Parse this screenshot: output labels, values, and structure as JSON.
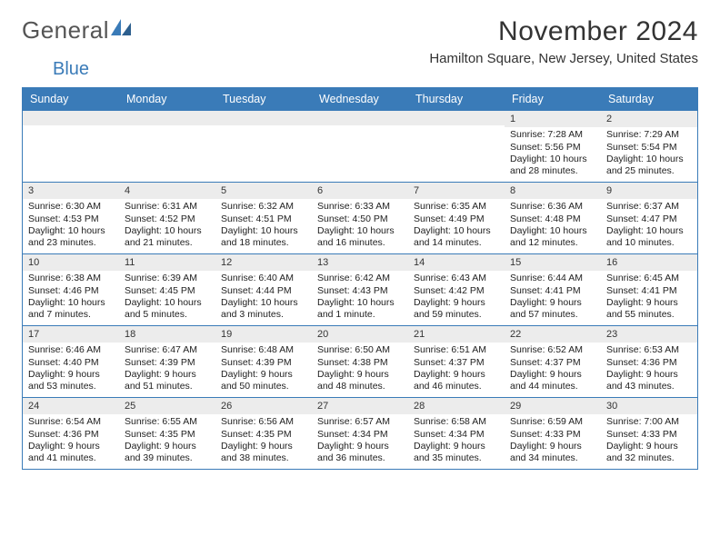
{
  "logo": {
    "word1": "General",
    "word2": "Blue"
  },
  "title": "November 2024",
  "location": "Hamilton Square, New Jersey, United States",
  "colors": {
    "header_bg": "#3a7bb8",
    "header_fg": "#ffffff",
    "daynum_bg": "#ececec",
    "border": "#3a7bb8",
    "text": "#222222",
    "logo_gray": "#555555",
    "logo_blue": "#3a7bb8",
    "page_bg": "#ffffff"
  },
  "day_names": [
    "Sunday",
    "Monday",
    "Tuesday",
    "Wednesday",
    "Thursday",
    "Friday",
    "Saturday"
  ],
  "weeks": [
    [
      {
        "n": "",
        "sr": "",
        "ss": "",
        "dl": ""
      },
      {
        "n": "",
        "sr": "",
        "ss": "",
        "dl": ""
      },
      {
        "n": "",
        "sr": "",
        "ss": "",
        "dl": ""
      },
      {
        "n": "",
        "sr": "",
        "ss": "",
        "dl": ""
      },
      {
        "n": "",
        "sr": "",
        "ss": "",
        "dl": ""
      },
      {
        "n": "1",
        "sr": "Sunrise: 7:28 AM",
        "ss": "Sunset: 5:56 PM",
        "dl": "Daylight: 10 hours and 28 minutes."
      },
      {
        "n": "2",
        "sr": "Sunrise: 7:29 AM",
        "ss": "Sunset: 5:54 PM",
        "dl": "Daylight: 10 hours and 25 minutes."
      }
    ],
    [
      {
        "n": "3",
        "sr": "Sunrise: 6:30 AM",
        "ss": "Sunset: 4:53 PM",
        "dl": "Daylight: 10 hours and 23 minutes."
      },
      {
        "n": "4",
        "sr": "Sunrise: 6:31 AM",
        "ss": "Sunset: 4:52 PM",
        "dl": "Daylight: 10 hours and 21 minutes."
      },
      {
        "n": "5",
        "sr": "Sunrise: 6:32 AM",
        "ss": "Sunset: 4:51 PM",
        "dl": "Daylight: 10 hours and 18 minutes."
      },
      {
        "n": "6",
        "sr": "Sunrise: 6:33 AM",
        "ss": "Sunset: 4:50 PM",
        "dl": "Daylight: 10 hours and 16 minutes."
      },
      {
        "n": "7",
        "sr": "Sunrise: 6:35 AM",
        "ss": "Sunset: 4:49 PM",
        "dl": "Daylight: 10 hours and 14 minutes."
      },
      {
        "n": "8",
        "sr": "Sunrise: 6:36 AM",
        "ss": "Sunset: 4:48 PM",
        "dl": "Daylight: 10 hours and 12 minutes."
      },
      {
        "n": "9",
        "sr": "Sunrise: 6:37 AM",
        "ss": "Sunset: 4:47 PM",
        "dl": "Daylight: 10 hours and 10 minutes."
      }
    ],
    [
      {
        "n": "10",
        "sr": "Sunrise: 6:38 AM",
        "ss": "Sunset: 4:46 PM",
        "dl": "Daylight: 10 hours and 7 minutes."
      },
      {
        "n": "11",
        "sr": "Sunrise: 6:39 AM",
        "ss": "Sunset: 4:45 PM",
        "dl": "Daylight: 10 hours and 5 minutes."
      },
      {
        "n": "12",
        "sr": "Sunrise: 6:40 AM",
        "ss": "Sunset: 4:44 PM",
        "dl": "Daylight: 10 hours and 3 minutes."
      },
      {
        "n": "13",
        "sr": "Sunrise: 6:42 AM",
        "ss": "Sunset: 4:43 PM",
        "dl": "Daylight: 10 hours and 1 minute."
      },
      {
        "n": "14",
        "sr": "Sunrise: 6:43 AM",
        "ss": "Sunset: 4:42 PM",
        "dl": "Daylight: 9 hours and 59 minutes."
      },
      {
        "n": "15",
        "sr": "Sunrise: 6:44 AM",
        "ss": "Sunset: 4:41 PM",
        "dl": "Daylight: 9 hours and 57 minutes."
      },
      {
        "n": "16",
        "sr": "Sunrise: 6:45 AM",
        "ss": "Sunset: 4:41 PM",
        "dl": "Daylight: 9 hours and 55 minutes."
      }
    ],
    [
      {
        "n": "17",
        "sr": "Sunrise: 6:46 AM",
        "ss": "Sunset: 4:40 PM",
        "dl": "Daylight: 9 hours and 53 minutes."
      },
      {
        "n": "18",
        "sr": "Sunrise: 6:47 AM",
        "ss": "Sunset: 4:39 PM",
        "dl": "Daylight: 9 hours and 51 minutes."
      },
      {
        "n": "19",
        "sr": "Sunrise: 6:48 AM",
        "ss": "Sunset: 4:39 PM",
        "dl": "Daylight: 9 hours and 50 minutes."
      },
      {
        "n": "20",
        "sr": "Sunrise: 6:50 AM",
        "ss": "Sunset: 4:38 PM",
        "dl": "Daylight: 9 hours and 48 minutes."
      },
      {
        "n": "21",
        "sr": "Sunrise: 6:51 AM",
        "ss": "Sunset: 4:37 PM",
        "dl": "Daylight: 9 hours and 46 minutes."
      },
      {
        "n": "22",
        "sr": "Sunrise: 6:52 AM",
        "ss": "Sunset: 4:37 PM",
        "dl": "Daylight: 9 hours and 44 minutes."
      },
      {
        "n": "23",
        "sr": "Sunrise: 6:53 AM",
        "ss": "Sunset: 4:36 PM",
        "dl": "Daylight: 9 hours and 43 minutes."
      }
    ],
    [
      {
        "n": "24",
        "sr": "Sunrise: 6:54 AM",
        "ss": "Sunset: 4:36 PM",
        "dl": "Daylight: 9 hours and 41 minutes."
      },
      {
        "n": "25",
        "sr": "Sunrise: 6:55 AM",
        "ss": "Sunset: 4:35 PM",
        "dl": "Daylight: 9 hours and 39 minutes."
      },
      {
        "n": "26",
        "sr": "Sunrise: 6:56 AM",
        "ss": "Sunset: 4:35 PM",
        "dl": "Daylight: 9 hours and 38 minutes."
      },
      {
        "n": "27",
        "sr": "Sunrise: 6:57 AM",
        "ss": "Sunset: 4:34 PM",
        "dl": "Daylight: 9 hours and 36 minutes."
      },
      {
        "n": "28",
        "sr": "Sunrise: 6:58 AM",
        "ss": "Sunset: 4:34 PM",
        "dl": "Daylight: 9 hours and 35 minutes."
      },
      {
        "n": "29",
        "sr": "Sunrise: 6:59 AM",
        "ss": "Sunset: 4:33 PM",
        "dl": "Daylight: 9 hours and 34 minutes."
      },
      {
        "n": "30",
        "sr": "Sunrise: 7:00 AM",
        "ss": "Sunset: 4:33 PM",
        "dl": "Daylight: 9 hours and 32 minutes."
      }
    ]
  ]
}
